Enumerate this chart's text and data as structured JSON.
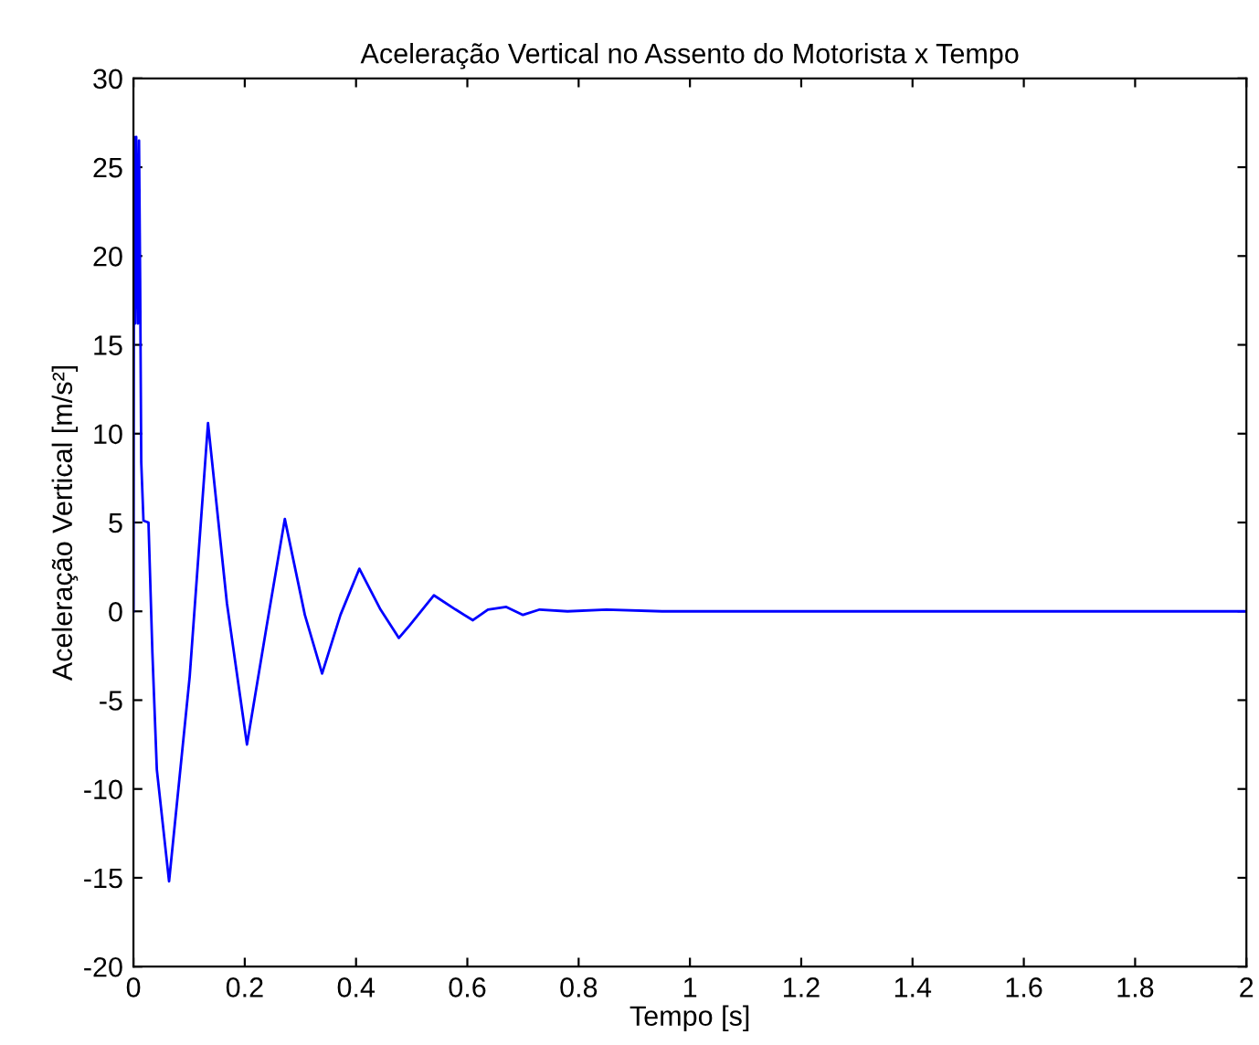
{
  "chart_data": {
    "type": "line",
    "title": "Aceleração Vertical no Assento do Motorista x Tempo",
    "xlabel": "Tempo [s]",
    "ylabel": "Aceleração Vertical [m/s²]",
    "series": [
      {
        "color": "#0000ff",
        "x": [
          0,
          0.001,
          0.003,
          0.005,
          0.008,
          0.01,
          0.012,
          0.014,
          0.018,
          0.027,
          0.034,
          0.042,
          0.064,
          0.101,
          0.134,
          0.168,
          0.204,
          0.239,
          0.272,
          0.308,
          0.339,
          0.372,
          0.406,
          0.444,
          0.477,
          0.496,
          0.54,
          0.579,
          0.61,
          0.637,
          0.67,
          0.7,
          0.73,
          0.78,
          0.85,
          0.95,
          1.5,
          1.7,
          2
        ],
        "values": [
          0,
          26.7,
          16.2,
          26.7,
          16.2,
          26.5,
          18.7,
          8.4,
          5.1,
          5.0,
          -2.3,
          -8.9,
          -15.2,
          -3.7,
          10.6,
          0.45,
          -7.5,
          -0.9,
          5.2,
          -0.2,
          -3.5,
          -0.2,
          2.4,
          0.1,
          -1.5,
          -0.8,
          0.9,
          0.1,
          -0.5,
          0.1,
          0.25,
          -0.2,
          0.1,
          0,
          0.1,
          0,
          0,
          0,
          0
        ]
      }
    ],
    "xlim": [
      0,
      2
    ],
    "ylim": [
      -20,
      30
    ],
    "xticks": [
      0,
      0.2,
      0.4,
      0.6,
      0.8,
      1,
      1.2,
      1.4,
      1.6,
      1.8,
      2
    ],
    "yticks": [
      -20,
      -15,
      -10,
      -5,
      0,
      5,
      10,
      15,
      20,
      25,
      30
    ],
    "grid": false,
    "legend": false,
    "line_style": "solid"
  }
}
